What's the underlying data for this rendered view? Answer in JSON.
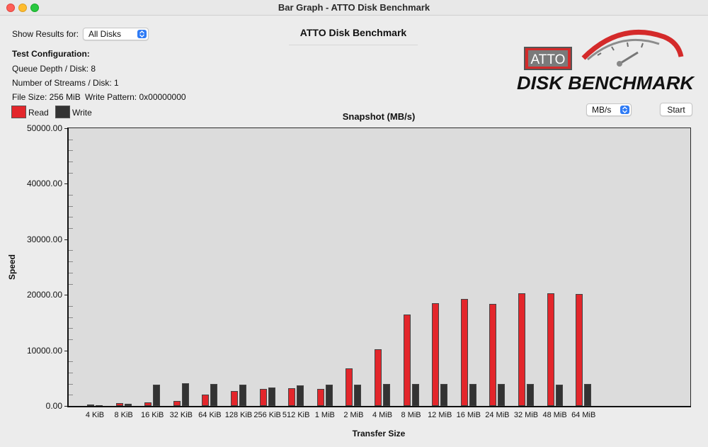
{
  "window": {
    "title": "Bar Graph - ATTO Disk Benchmark"
  },
  "controls": {
    "show_results_label": "Show Results for:",
    "show_results_value": "All Disks",
    "units_value": "MB/s",
    "start_label": "Start"
  },
  "header": {
    "title": "ATTO Disk Benchmark"
  },
  "logo": {
    "brand": "ATTO",
    "product": "DISK BENCHMARK"
  },
  "config": {
    "heading": "Test Configuration:",
    "queue_depth": "Queue Depth / Disk: 8",
    "streams": "Number of Streams / Disk: 1",
    "file_size": "File Size: 256 MiB",
    "write_pattern": "Write Pattern: 0x00000000"
  },
  "legend": {
    "read_label": "Read",
    "write_label": "Write"
  },
  "colors": {
    "read": "#e3262b",
    "write": "#333333",
    "plot_bg": "#dcdcdc",
    "stepper": "#2f7bf5"
  },
  "chart_data": {
    "type": "bar",
    "title": "Snapshot (MB/s)",
    "xlabel": "Transfer Size",
    "ylabel": "Speed",
    "ylim": [
      0,
      50000
    ],
    "yticks": [
      "0.00",
      "10000.00",
      "20000.00",
      "30000.00",
      "40000.00",
      "50000.00"
    ],
    "categories": [
      "4 KiB",
      "8 KiB",
      "16 KiB",
      "32 KiB",
      "64 KiB",
      "128 KiB",
      "256 KiB",
      "512 KiB",
      "1 MiB",
      "2 MiB",
      "4 MiB",
      "8 MiB",
      "12 MiB",
      "16 MiB",
      "24 MiB",
      "32 MiB",
      "48 MiB",
      "64 MiB"
    ],
    "series": [
      {
        "name": "Read",
        "values": [
          200,
          450,
          700,
          850,
          2000,
          2700,
          3000,
          3200,
          3000,
          6700,
          10200,
          16500,
          18500,
          19200,
          18400,
          20300,
          20300,
          20100
        ]
      },
      {
        "name": "Write",
        "values": [
          180,
          350,
          3800,
          4100,
          4000,
          3800,
          3300,
          3700,
          3800,
          3800,
          3900,
          3900,
          3900,
          3900,
          3900,
          3900,
          3800,
          3900
        ]
      }
    ]
  }
}
